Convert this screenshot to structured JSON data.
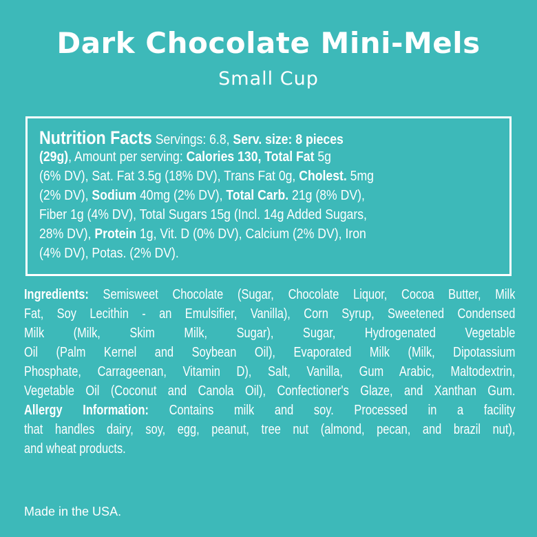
{
  "header": {
    "title": "Dark Chocolate Mini-Mels",
    "subtitle": "Small Cup"
  },
  "nutrition_facts": {
    "lines": [
      [
        {
          "t": "Nutrition Facts",
          "s": "big"
        },
        {
          "t": " Servings: 6.8, "
        },
        {
          "t": "Serv. size: 8 pieces",
          "b": true
        }
      ],
      [
        {
          "t": "(29g)",
          "b": true
        },
        {
          "t": ", Amount per serving: "
        },
        {
          "t": "Calories 130, Total Fat",
          "b": true
        },
        {
          "t": " 5g"
        }
      ],
      [
        {
          "t": "(6% DV), Sat. Fat 3.5g (18% DV), Trans Fat 0g, "
        },
        {
          "t": "Cholest.",
          "b": true
        },
        {
          "t": " 5mg"
        }
      ],
      [
        {
          "t": "(2% DV), "
        },
        {
          "t": "Sodium",
          "b": true
        },
        {
          "t": " 40mg (2% DV), "
        },
        {
          "t": "Total Carb.",
          "b": true
        },
        {
          "t": " 21g (8% DV),"
        }
      ],
      [
        {
          "t": "Fiber 1g (4% DV), Total Sugars 15g (Incl. 14g Added Sugars,"
        }
      ],
      [
        {
          "t": "28% DV), "
        },
        {
          "t": "Protein",
          "b": true
        },
        {
          "t": " 1g, Vit. D (0% DV), Calcium (2% DV), Iron"
        }
      ],
      [
        {
          "t": "(4% DV), Potas. (2% DV)."
        }
      ]
    ]
  },
  "ingredients": {
    "lines": [
      [
        {
          "t": "Ingredients:",
          "b": true
        },
        {
          "t": " Semisweet Chocolate (Sugar, Chocolate Liquor, Cocoa Butter, Milk"
        }
      ],
      [
        {
          "t": "Fat, Soy Lecithin - an Emulsifier, Vanilla), Corn Syrup, Sweetened Condensed"
        }
      ],
      [
        {
          "t": "Milk (Milk, Skim Milk, Sugar), Sugar, Hydrogenated Vegetable"
        }
      ],
      [
        {
          "t": "Oil (Palm Kernel and Soybean Oil), Evaporated Milk (Milk, Dipotassium"
        }
      ],
      [
        {
          "t": "Phosphate, Carrageenan, Vitamin D), Salt, Vanilla, Gum Arabic, Maltodextrin,"
        }
      ],
      [
        {
          "t": "Vegetable Oil (Coconut and Canola Oil), Confectioner's Glaze, and Xanthan Gum."
        }
      ],
      [
        {
          "t": "Allergy Information:",
          "b": true
        },
        {
          "t": " Contains milk and soy. Processed in a facility"
        }
      ],
      [
        {
          "t": "that handles dairy, soy, egg, peanut, tree nut (almond, pecan, and brazil nut),"
        }
      ],
      [
        {
          "t": "and wheat products."
        }
      ]
    ]
  },
  "footer": {
    "origin": "Made in the USA."
  },
  "colors": {
    "background": "#3db9b9",
    "text": "#ffffff"
  }
}
